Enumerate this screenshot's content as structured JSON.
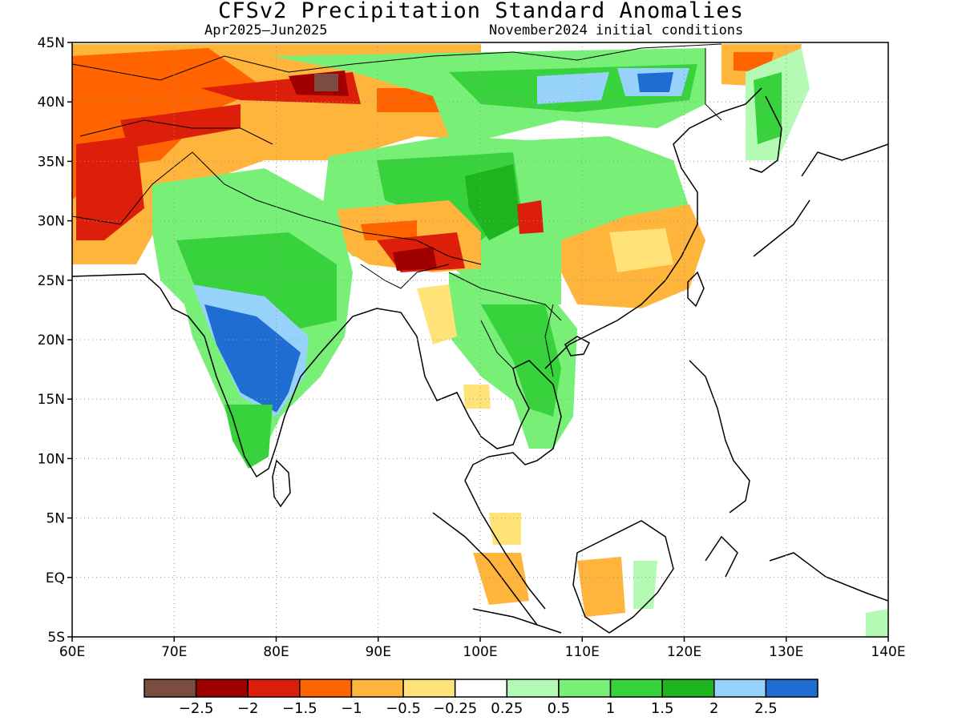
{
  "title": "CFSv2 Precipitation Standard Anomalies",
  "subtitle_left": "Apr2025–Jun2025",
  "subtitle_right": "November2024 initial conditions",
  "map": {
    "lon_range": [
      60,
      140
    ],
    "lat_range": [
      -5,
      45
    ],
    "lon_ticks": [
      {
        "v": 60,
        "label": "60E"
      },
      {
        "v": 70,
        "label": "70E"
      },
      {
        "v": 80,
        "label": "80E"
      },
      {
        "v": 90,
        "label": "90E"
      },
      {
        "v": 100,
        "label": "100E"
      },
      {
        "v": 110,
        "label": "110E"
      },
      {
        "v": 120,
        "label": "120E"
      },
      {
        "v": 130,
        "label": "130E"
      },
      {
        "v": 140,
        "label": "140E"
      }
    ],
    "lat_ticks": [
      {
        "v": 45,
        "label": "45N"
      },
      {
        "v": 40,
        "label": "40N"
      },
      {
        "v": 35,
        "label": "35N"
      },
      {
        "v": 30,
        "label": "30N"
      },
      {
        "v": 25,
        "label": "25N"
      },
      {
        "v": 20,
        "label": "20N"
      },
      {
        "v": 15,
        "label": "15N"
      },
      {
        "v": 10,
        "label": "10N"
      },
      {
        "v": 5,
        "label": "5N"
      },
      {
        "v": 0,
        "label": "EQ"
      },
      {
        "v": -5,
        "label": "5S"
      }
    ],
    "gridlines": "dotted"
  },
  "colorbar": {
    "colors": [
      "#7a4d40",
      "#a00000",
      "#dc1e0a",
      "#ff6400",
      "#ffb43c",
      "#ffe278",
      "#ffffff",
      "#b4fab4",
      "#78f078",
      "#37d23c",
      "#1eb41e",
      "#96d2fa",
      "#1e6ed2"
    ],
    "labels": [
      "−2.5",
      "−2",
      "−1.5",
      "−1",
      "−0.5",
      "−0.25",
      "0.25",
      "0.5",
      "1",
      "1.5",
      "2",
      "2.5"
    ]
  }
}
